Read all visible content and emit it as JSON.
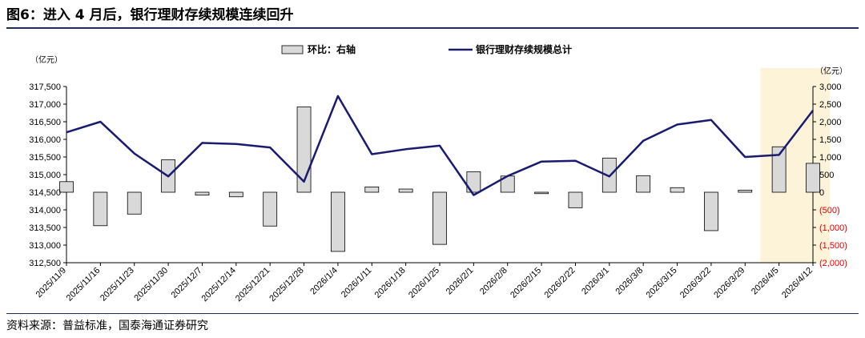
{
  "figure": {
    "title": "图6：进入 4 月后，银行理财存续规模连续回升",
    "source": "资料来源：普益标准，国泰海通证券研究"
  },
  "chart_data": {
    "type": "bar+line",
    "left_axis": {
      "unit": "（亿元）",
      "ylim": [
        312500,
        317500
      ],
      "ticks": [
        312500,
        313000,
        313500,
        314000,
        314500,
        315000,
        315500,
        316000,
        316500,
        317000,
        317500
      ],
      "tick_labels": [
        "312,500",
        "313,000",
        "313,500",
        "314,000",
        "314,500",
        "315,000",
        "315,500",
        "316,000",
        "316,500",
        "317,000",
        "317,500"
      ]
    },
    "right_axis": {
      "unit": "（亿元）",
      "ylim": [
        -2000,
        3000
      ],
      "ticks": [
        3000,
        2500,
        2000,
        1500,
        1000,
        500,
        0,
        -500,
        -1000,
        -1500,
        -2000
      ],
      "tick_labels": [
        "3,000",
        "2,500",
        "2,000",
        "1,500",
        "1,000",
        "500",
        "0",
        "(500)",
        "(1,000)",
        "(1,500)",
        "(2,000)"
      ],
      "negative_color": "#e00000"
    },
    "categories": [
      "2025/11/9",
      "2025/11/16",
      "2025/11/23",
      "2025/11/30",
      "2025/12/7",
      "2025/12/14",
      "2025/12/21",
      "2025/12/28",
      "2026/1/4",
      "2026/1/11",
      "2026/1/18",
      "2026/1/25",
      "2026/2/1",
      "2026/2/8",
      "2026/2/15",
      "2026/2/22",
      "2026/3/1",
      "2026/3/8",
      "2026/3/15",
      "2026/3/22",
      "2026/3/29",
      "2026/4/5",
      "2026/4/12"
    ],
    "series": [
      {
        "name": "环比：右轴",
        "type": "bar",
        "axis": "right",
        "color": "#d9d9d9",
        "values": [
          300,
          -950,
          -620,
          920,
          -80,
          -130,
          -960,
          2420,
          -1680,
          150,
          90,
          -1480,
          580,
          460,
          -40,
          -440,
          970,
          470,
          130,
          -1090,
          60,
          1290,
          820
        ]
      },
      {
        "name": "银行理财存续规模总计",
        "type": "line",
        "axis": "left",
        "color": "#1a1a6e",
        "values": [
          316200,
          316500,
          315600,
          314950,
          315900,
          315870,
          315770,
          314800,
          317230,
          315580,
          315720,
          315820,
          314420,
          314960,
          315370,
          315390,
          314950,
          315960,
          316420,
          316550,
          315500,
          315560,
          316820
        ]
      }
    ],
    "highlight": {
      "from": "2026/4/5",
      "to": "2026/4/12",
      "color": "#fdf3d9"
    },
    "legend": "top"
  }
}
